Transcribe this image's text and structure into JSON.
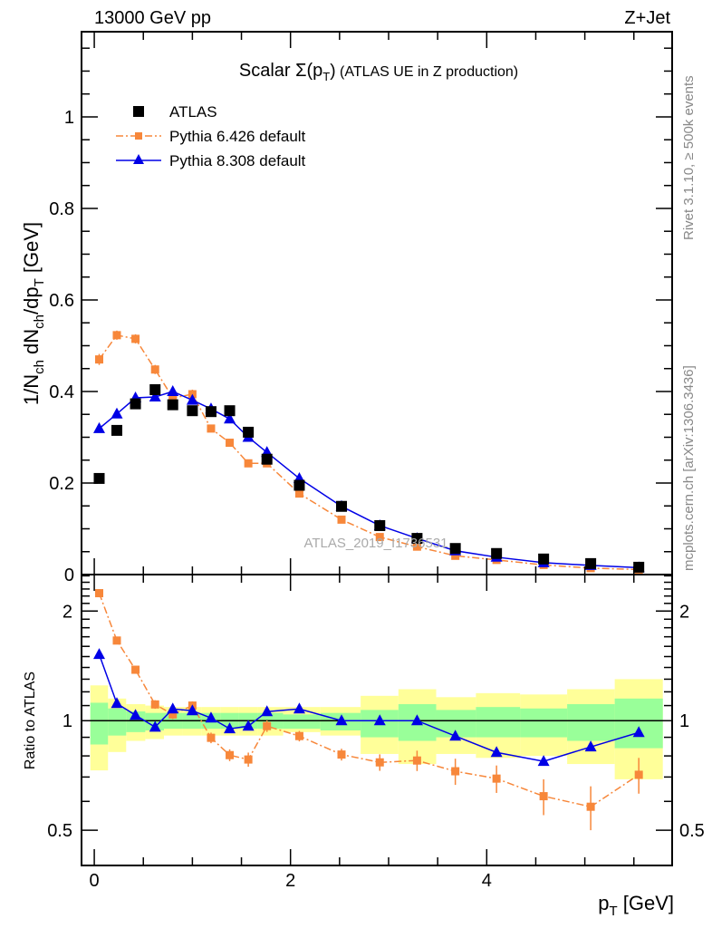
{
  "header": {
    "left": "13000 GeV pp",
    "right": "Z+Jet"
  },
  "side_text": {
    "top": "Rivet 3.1.10, ≥ 500k events",
    "bottom": "mcplots.cern.ch [arXiv:1306.3436]"
  },
  "watermark": "ATLAS_2019_I1736531",
  "chart_data": [
    {
      "type": "scatter",
      "title_parts": [
        "Scalar Σ(p",
        "T",
        ")",
        " (ATLAS UE in Z production)"
      ],
      "ylabel_parts": [
        "1/N",
        "ch",
        " dN",
        "ch",
        "/dp",
        "T",
        " [GeV]"
      ],
      "xlabel_parts": [
        "p",
        "T",
        " [GeV]"
      ],
      "xlim": [
        -0.13,
        5.89
      ],
      "ylim": [
        0,
        1.186
      ],
      "xticks": [
        0,
        2,
        4
      ],
      "xtick_labels": [
        "0",
        "2",
        "4"
      ],
      "yticks": [
        0,
        0.2,
        0.4,
        0.6,
        0.8,
        1
      ],
      "ytick_labels": [
        "0",
        "0.2",
        "0.4",
        "0.6",
        "0.8",
        "1"
      ],
      "legend_position": "top-left",
      "x": [
        0.05,
        0.23,
        0.42,
        0.62,
        0.8,
        1.0,
        1.19,
        1.38,
        1.57,
        1.76,
        2.09,
        2.52,
        2.91,
        3.29,
        3.68,
        4.1,
        4.58,
        5.06,
        5.55
      ],
      "series": [
        {
          "name": "ATLAS",
          "color": "#000000",
          "marker": "square",
          "values": [
            0.21,
            0.315,
            0.373,
            0.404,
            0.371,
            0.358,
            0.356,
            0.358,
            0.311,
            0.252,
            0.195,
            0.149,
            0.107,
            0.079,
            0.057,
            0.046,
            0.034,
            0.024,
            0.016
          ]
        },
        {
          "name": "Pythia 6.426 default",
          "color": "#f7873a",
          "marker": "small-square",
          "line": "dashdot",
          "values": [
            0.47,
            0.523,
            0.515,
            0.448,
            0.386,
            0.394,
            0.319,
            0.288,
            0.243,
            0.243,
            0.177,
            0.12,
            0.082,
            0.061,
            0.041,
            0.032,
            0.021,
            0.014,
            0.011
          ],
          "errors": [
            0.012,
            0.01,
            0.01,
            0.01,
            0.008,
            0.01,
            0.008,
            0.008,
            0.007,
            0.007,
            0.005,
            0.004,
            0.003,
            0.003,
            0.002,
            0.002,
            0.002,
            0.002,
            0.002
          ]
        },
        {
          "name": "Pythia 8.308 default",
          "color": "#0000e6",
          "marker": "triangle",
          "line": "solid",
          "values": [
            0.319,
            0.351,
            0.386,
            0.388,
            0.4,
            0.381,
            0.362,
            0.34,
            0.3,
            0.267,
            0.21,
            0.149,
            0.107,
            0.079,
            0.052,
            0.038,
            0.026,
            0.02,
            0.015
          ]
        }
      ]
    },
    {
      "type": "scatter",
      "ylabel": "Ratio to ATLAS",
      "yscale": "log",
      "ylim": [
        0.4,
        2.52
      ],
      "yticks": [
        0.5,
        1,
        2
      ],
      "ytick_labels": [
        "0.5",
        "1",
        "2"
      ],
      "band_green": {
        "upper": [
          1.12,
          1.08,
          1.06,
          1.05,
          1.05,
          1.05,
          1.05,
          1.05,
          1.05,
          1.05,
          1.04,
          1.05,
          1.07,
          1.11,
          1.07,
          1.09,
          1.08,
          1.11,
          1.15
        ],
        "lower": [
          0.86,
          0.91,
          0.93,
          0.94,
          0.95,
          0.95,
          0.95,
          0.95,
          0.95,
          0.95,
          0.95,
          0.94,
          0.9,
          0.88,
          0.9,
          0.9,
          0.9,
          0.88,
          0.84
        ]
      },
      "band_yellow": {
        "upper": [
          1.25,
          1.15,
          1.11,
          1.1,
          1.09,
          1.09,
          1.09,
          1.09,
          1.09,
          1.09,
          1.09,
          1.09,
          1.17,
          1.22,
          1.16,
          1.19,
          1.18,
          1.22,
          1.3
        ],
        "lower": [
          0.73,
          0.82,
          0.88,
          0.89,
          0.91,
          0.91,
          0.91,
          0.91,
          0.91,
          0.91,
          0.93,
          0.91,
          0.81,
          0.76,
          0.81,
          0.79,
          0.8,
          0.76,
          0.69
        ]
      },
      "series": [
        {
          "name": "Pythia 6.426 default",
          "values": [
            2.24,
            1.66,
            1.38,
            1.108,
            1.04,
            1.1,
            0.897,
            0.804,
            0.782,
            0.966,
            0.907,
            0.807,
            0.768,
            0.777,
            0.726,
            0.693,
            0.62,
            0.58,
            0.71
          ],
          "errors": [
            0.03,
            0.03,
            0.03,
            0.03,
            0.03,
            0.03,
            0.03,
            0.03,
            0.035,
            0.035,
            0.03,
            0.03,
            0.04,
            0.05,
            0.06,
            0.06,
            0.07,
            0.08,
            0.08
          ]
        },
        {
          "name": "Pythia 8.308 default",
          "values": [
            1.52,
            1.115,
            1.035,
            0.96,
            1.077,
            1.065,
            1.017,
            0.95,
            0.966,
            1.059,
            1.077,
            1.0,
            1.0,
            1.0,
            0.907,
            0.818,
            0.773,
            0.847,
            0.928
          ],
          "errors": [
            0.01,
            0.01,
            0.01,
            0.01,
            0.01,
            0.01,
            0.01,
            0.01,
            0.01,
            0.01,
            0.01,
            0.01,
            0.01,
            0.01,
            0.015,
            0.015,
            0.02,
            0.02,
            0.025
          ]
        }
      ]
    }
  ]
}
